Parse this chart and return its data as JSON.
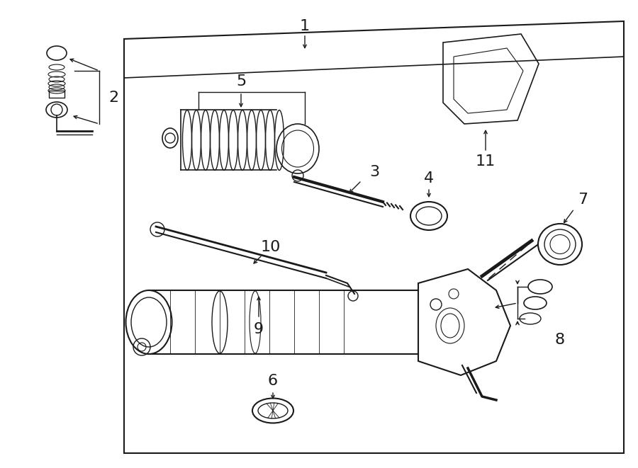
{
  "bg_color": "#ffffff",
  "line_color": "#1a1a1a",
  "fig_width": 9.0,
  "fig_height": 6.61,
  "dpi": 100,
  "xlim": [
    0,
    900
  ],
  "ylim": [
    0,
    661
  ]
}
